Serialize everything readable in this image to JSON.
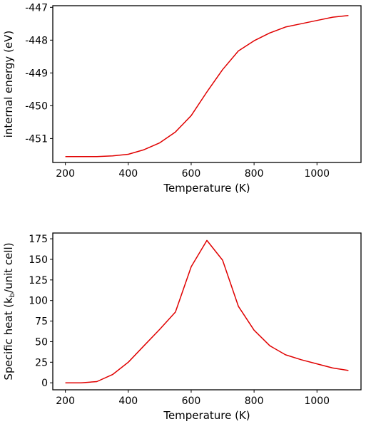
{
  "chart_data": [
    {
      "type": "line",
      "title": "",
      "xlabel": "Temperature (K)",
      "ylabel": "internal energy (eV)",
      "xlim": [
        160,
        1140
      ],
      "ylim": [
        -451.73,
        -446.95
      ],
      "xticks": [
        200,
        400,
        600,
        800,
        1000
      ],
      "xtick_labels": [
        "200",
        "400",
        "600",
        "800",
        "1000"
      ],
      "yticks": [
        -447,
        -448,
        -449,
        -450,
        -451
      ],
      "ytick_labels": [
        "-447",
        "-448",
        "-449",
        "-450",
        "-451"
      ],
      "grid": false,
      "series": [
        {
          "color": "#e00000",
          "x": [
            200,
            250,
            300,
            350,
            400,
            450,
            500,
            550,
            600,
            650,
            700,
            750,
            800,
            850,
            900,
            950,
            1000,
            1050,
            1100
          ],
          "y": [
            -451.55,
            -451.55,
            -451.55,
            -451.53,
            -451.48,
            -451.34,
            -451.13,
            -450.8,
            -450.3,
            -449.58,
            -448.9,
            -448.33,
            -448.02,
            -447.78,
            -447.6,
            -447.5,
            -447.4,
            -447.3,
            -447.25
          ]
        }
      ]
    },
    {
      "type": "line",
      "title": "",
      "xlabel": "Temperature (K)",
      "ylabel": "Specific heat (k",
      "ylabel_sub": "b",
      "ylabel_suffix": "/unit cell)",
      "xlim": [
        160,
        1140
      ],
      "ylim": [
        -8.5,
        182
      ],
      "xticks": [
        200,
        400,
        600,
        800,
        1000
      ],
      "xtick_labels": [
        "200",
        "400",
        "600",
        "800",
        "1000"
      ],
      "yticks": [
        0,
        25,
        50,
        75,
        100,
        125,
        150,
        175
      ],
      "ytick_labels": [
        "0",
        "25",
        "50",
        "75",
        "100",
        "125",
        "150",
        "175"
      ],
      "grid": false,
      "series": [
        {
          "color": "#e00000",
          "x": [
            200,
            250,
            300,
            350,
            400,
            450,
            500,
            550,
            600,
            650,
            700,
            750,
            800,
            850,
            900,
            950,
            1000,
            1050,
            1100
          ],
          "y": [
            0,
            0,
            1.5,
            10,
            25,
            45,
            65,
            86,
            141,
            173,
            149,
            93,
            64,
            45,
            34,
            28,
            23,
            18,
            15
          ]
        }
      ]
    }
  ]
}
